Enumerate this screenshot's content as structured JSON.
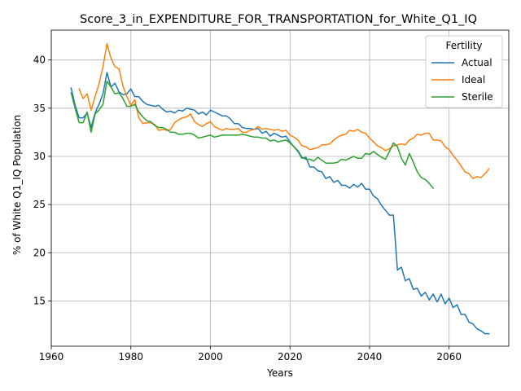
{
  "chart_data": {
    "type": "line",
    "title": "Score_3_in_EXPENDITURE_FOR_TRANSPORTATION_for_White_Q1_IQ",
    "xlabel": "Years",
    "ylabel": "% of White Q1_IQ Population",
    "xlim": [
      1960,
      2075
    ],
    "ylim": [
      10.3,
      43.1
    ],
    "xticks": [
      1960,
      1980,
      2000,
      2020,
      2040,
      2060
    ],
    "yticks": [
      15,
      20,
      25,
      30,
      35,
      40
    ],
    "grid": true,
    "legend": {
      "title": "Fertility",
      "position": "top-right"
    },
    "series": [
      {
        "name": "Actual",
        "color": "#1f77b4",
        "x": [
          1965,
          1966,
          1967,
          1968,
          1969,
          1970,
          1971,
          1972,
          1973,
          1974,
          1975,
          1976,
          1977,
          1978,
          1979,
          1980,
          1981,
          1982,
          1983,
          1984,
          1985,
          1986,
          1987,
          1988,
          1989,
          1990,
          1991,
          1992,
          1993,
          1994,
          1995,
          1996,
          1997,
          1998,
          1999,
          2000,
          2001,
          2002,
          2003,
          2004,
          2005,
          2006,
          2007,
          2008,
          2009,
          2010,
          2011,
          2012,
          2013,
          2014,
          2015,
          2016,
          2017,
          2018,
          2019,
          2020,
          2021,
          2022,
          2023,
          2024,
          2025,
          2026,
          2027,
          2028,
          2029,
          2030,
          2031,
          2032,
          2033,
          2034,
          2035,
          2036,
          2037,
          2038,
          2039,
          2040,
          2041,
          2042,
          2043,
          2044,
          2045,
          2046,
          2047,
          2048,
          2049,
          2050,
          2051,
          2052,
          2053,
          2054,
          2055,
          2056,
          2057,
          2058,
          2059,
          2060,
          2061,
          2062,
          2063,
          2064,
          2065,
          2066,
          2067,
          2068,
          2069,
          2070
        ],
        "values": [
          37.1,
          35.3,
          34.0,
          34.0,
          34.5,
          33.0,
          34.5,
          35.4,
          36.5,
          38.7,
          37.2,
          37.6,
          36.7,
          36.4,
          36.5,
          37.0,
          36.2,
          36.2,
          35.7,
          35.4,
          35.3,
          35.2,
          35.3,
          34.9,
          34.6,
          34.7,
          34.5,
          34.8,
          34.7,
          35.0,
          34.9,
          34.8,
          34.4,
          34.6,
          34.3,
          34.8,
          34.6,
          34.4,
          34.2,
          34.2,
          33.9,
          33.4,
          33.4,
          33.0,
          32.9,
          32.9,
          32.8,
          32.9,
          32.4,
          32.6,
          32.1,
          32.4,
          32.2,
          32.0,
          32.1,
          31.5,
          31.0,
          30.5,
          29.8,
          29.9,
          28.9,
          28.9,
          28.5,
          28.4,
          27.7,
          27.9,
          27.3,
          27.5,
          27.0,
          27.0,
          26.7,
          27.1,
          26.8,
          27.2,
          26.6,
          26.6,
          25.9,
          25.6,
          24.9,
          24.4,
          23.9,
          23.9,
          18.2,
          18.5,
          17.1,
          17.3,
          16.2,
          16.3,
          15.5,
          15.9,
          15.1,
          15.7,
          14.9,
          15.7,
          14.7,
          15.3,
          14.3,
          14.6,
          13.6,
          13.6,
          12.8,
          12.6,
          12.1,
          11.9,
          11.6,
          11.6
        ]
      },
      {
        "name": "Ideal",
        "color": "#ff7f0e",
        "x": [
          1967,
          1968,
          1969,
          1970,
          1971,
          1972,
          1973,
          1974,
          1975,
          1976,
          1977,
          1978,
          1979,
          1980,
          1981,
          1982,
          1983,
          1984,
          1985,
          1986,
          1987,
          1988,
          1989,
          1990,
          1991,
          1992,
          1993,
          1994,
          1995,
          1996,
          1997,
          1998,
          1999,
          2000,
          2001,
          2002,
          2003,
          2004,
          2005,
          2006,
          2007,
          2008,
          2009,
          2010,
          2011,
          2012,
          2013,
          2014,
          2015,
          2016,
          2017,
          2018,
          2019,
          2020,
          2021,
          2022,
          2023,
          2024,
          2025,
          2026,
          2027,
          2028,
          2029,
          2030,
          2031,
          2032,
          2033,
          2034,
          2035,
          2036,
          2037,
          2038,
          2039,
          2040,
          2041,
          2042,
          2043,
          2044,
          2045,
          2046,
          2047,
          2048,
          2049,
          2050,
          2051,
          2052,
          2053,
          2054,
          2055,
          2056,
          2057,
          2058,
          2059,
          2060,
          2061,
          2062,
          2063,
          2064,
          2065,
          2066,
          2067,
          2068,
          2069,
          2070
        ],
        "values": [
          37.0,
          36.0,
          36.5,
          34.8,
          36.2,
          37.5,
          39.3,
          41.7,
          40.2,
          39.3,
          39.1,
          37.3,
          36.2,
          35.3,
          35.9,
          34.0,
          33.4,
          33.5,
          33.5,
          33.3,
          32.7,
          32.8,
          32.7,
          32.8,
          33.5,
          33.8,
          34.0,
          34.1,
          34.4,
          33.6,
          33.3,
          33.1,
          33.4,
          33.6,
          33.1,
          32.9,
          32.7,
          32.9,
          32.8,
          32.8,
          32.9,
          32.5,
          32.5,
          32.7,
          32.8,
          33.1,
          32.8,
          32.9,
          32.8,
          32.7,
          32.8,
          32.6,
          32.7,
          32.2,
          32.0,
          31.7,
          31.1,
          31.0,
          30.7,
          30.8,
          30.9,
          31.2,
          31.2,
          31.3,
          31.7,
          32.0,
          32.2,
          32.3,
          32.7,
          32.6,
          32.8,
          32.5,
          32.4,
          31.9,
          31.5,
          31.1,
          30.9,
          30.6,
          30.8,
          31.1,
          31.2,
          31.3,
          31.2,
          31.7,
          31.9,
          32.3,
          32.2,
          32.4,
          32.4,
          31.7,
          31.7,
          31.6,
          31.0,
          30.7,
          30.1,
          29.6,
          29.0,
          28.4,
          28.2,
          27.7,
          27.9,
          27.8,
          28.2,
          28.7
        ]
      },
      {
        "name": "Sterile",
        "color": "#2ca02c",
        "x": [
          1965,
          1966,
          1967,
          1968,
          1969,
          1970,
          1971,
          1972,
          1973,
          1974,
          1975,
          1976,
          1977,
          1978,
          1979,
          1980,
          1981,
          1982,
          1983,
          1984,
          1985,
          1986,
          1987,
          1988,
          1989,
          1990,
          1991,
          1992,
          1993,
          1994,
          1995,
          1996,
          1997,
          1998,
          1999,
          2000,
          2001,
          2002,
          2003,
          2004,
          2005,
          2006,
          2007,
          2008,
          2009,
          2010,
          2011,
          2012,
          2013,
          2014,
          2015,
          2016,
          2017,
          2018,
          2019,
          2020,
          2021,
          2022,
          2023,
          2024,
          2025,
          2026,
          2027,
          2028,
          2029,
          2030,
          2031,
          2032,
          2033,
          2034,
          2035,
          2036,
          2037,
          2038,
          2039,
          2040,
          2041,
          2042,
          2043,
          2044,
          2045,
          2046,
          2047,
          2048,
          2049,
          2050,
          2051,
          2052,
          2053,
          2054,
          2055,
          2056
        ],
        "values": [
          36.6,
          35.0,
          33.5,
          33.5,
          34.6,
          32.5,
          34.4,
          34.8,
          35.4,
          37.8,
          37.2,
          36.5,
          36.6,
          36.0,
          35.2,
          35.2,
          35.4,
          34.6,
          34.1,
          33.7,
          33.6,
          33.2,
          33.0,
          33.0,
          32.8,
          32.5,
          32.5,
          32.3,
          32.3,
          32.4,
          32.4,
          32.2,
          31.9,
          32.0,
          32.1,
          32.2,
          32.0,
          32.1,
          32.2,
          32.2,
          32.2,
          32.2,
          32.2,
          32.3,
          32.2,
          32.1,
          32.0,
          32.0,
          31.9,
          31.9,
          31.6,
          31.7,
          31.5,
          31.6,
          31.7,
          31.4,
          31.0,
          30.6,
          29.9,
          29.7,
          29.7,
          29.5,
          29.9,
          29.6,
          29.3,
          29.3,
          29.3,
          29.4,
          29.7,
          29.6,
          29.8,
          30.0,
          29.8,
          29.8,
          30.3,
          30.2,
          30.5,
          30.2,
          29.9,
          29.7,
          30.5,
          31.4,
          31.0,
          29.8,
          29.1,
          30.3,
          29.4,
          28.4,
          27.8,
          27.6,
          27.2,
          26.7
        ]
      }
    ]
  }
}
